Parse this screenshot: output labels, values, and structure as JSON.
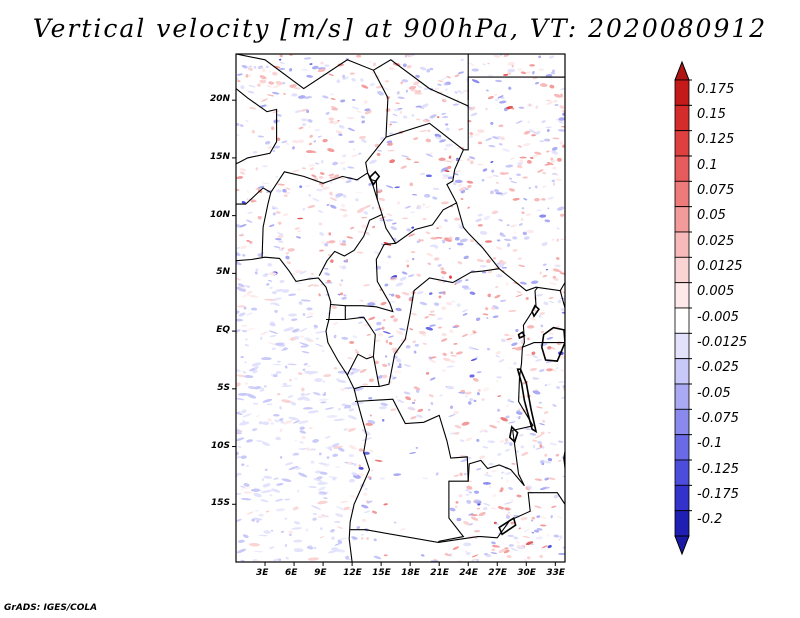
{
  "title": "Vertical velocity [m/s] at 900hPa, VT: 2020080912",
  "credit": "GrADS: IGES/COLA",
  "map": {
    "region": "Central Africa",
    "lon_range": [
      0,
      34
    ],
    "lat_range": [
      -20,
      24
    ],
    "lat_ticks": [
      {
        "value": 20,
        "label": "20N"
      },
      {
        "value": 15,
        "label": "15N"
      },
      {
        "value": 10,
        "label": "10N"
      },
      {
        "value": 5,
        "label": "5N"
      },
      {
        "value": 0,
        "label": "EQ"
      },
      {
        "value": -5,
        "label": "5S"
      },
      {
        "value": -10,
        "label": "10S"
      },
      {
        "value": -15,
        "label": "15S"
      }
    ],
    "lon_ticks": [
      {
        "value": 3,
        "label": "3E"
      },
      {
        "value": 6,
        "label": "6E"
      },
      {
        "value": 9,
        "label": "9E"
      },
      {
        "value": 12,
        "label": "12E"
      },
      {
        "value": 15,
        "label": "15E"
      },
      {
        "value": 18,
        "label": "18E"
      },
      {
        "value": 21,
        "label": "21E"
      },
      {
        "value": 24,
        "label": "24E"
      },
      {
        "value": 27,
        "label": "27E"
      },
      {
        "value": 30,
        "label": "30E"
      },
      {
        "value": 33,
        "label": "33E"
      }
    ]
  },
  "colorbar": {
    "levels": [
      {
        "label": "0.175",
        "color": "#c41a1a"
      },
      {
        "label": "0.15",
        "color": "#d42b2b"
      },
      {
        "label": "0.125",
        "color": "#de4040"
      },
      {
        "label": "0.1",
        "color": "#e65b5b"
      },
      {
        "label": "0.075",
        "color": "#ee7a7a"
      },
      {
        "label": "0.05",
        "color": "#f39b9b"
      },
      {
        "label": "0.025",
        "color": "#f7b9b9"
      },
      {
        "label": "0.0125",
        "color": "#fad3d3"
      },
      {
        "label": "0.005",
        "color": "#fde9e9"
      },
      {
        "label": "-0.005",
        "color": "#ffffff"
      },
      {
        "label": "-0.0125",
        "color": "#e2e2fc"
      },
      {
        "label": "-0.025",
        "color": "#c9c9f9"
      },
      {
        "label": "-0.05",
        "color": "#aaaaf4"
      },
      {
        "label": "-0.075",
        "color": "#8a8aee"
      },
      {
        "label": "-0.1",
        "color": "#6a6ae6"
      },
      {
        "label": "-0.125",
        "color": "#4d4ddc"
      },
      {
        "label": "-0.175",
        "color": "#3333cc"
      },
      {
        "label": "-0.2",
        "color": "#1f1fb4"
      }
    ],
    "low_end_color": "#1a1aa6",
    "high_end_color": "#b01515",
    "neutral_color": "#ffffff"
  }
}
